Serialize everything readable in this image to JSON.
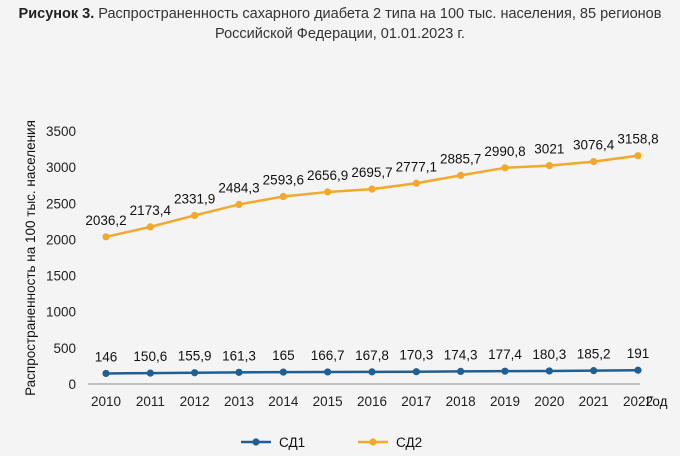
{
  "figure": {
    "label": "Рисунок 3.",
    "title_line1": "Распространенность сахарного диабета 2 типа на 100 тыс. населения, 85 регионов",
    "title_line2": "Российской Федерации, 01.01.2023 г."
  },
  "colors": {
    "sd1": "#1f5f93",
    "sd2": "#f2a92b",
    "axis": "#8a8a8a"
  },
  "chart_data": {
    "type": "line",
    "title": "Распространенность сахарного диабета 2 типа на 100 тыс. населения, 85 регионов Российской Федерации, 01.01.2023 г.",
    "xlabel": "Год",
    "ylabel": "Распространенность на 100 тыс. населения",
    "ylim": [
      0,
      3500
    ],
    "yticks": [
      0,
      500,
      1000,
      1500,
      2000,
      2500,
      3000,
      3500
    ],
    "grid": false,
    "legend_position": "bottom",
    "categories": [
      "2010",
      "2011",
      "2012",
      "2013",
      "2014",
      "2015",
      "2016",
      "2017",
      "2018",
      "2019",
      "2020",
      "2021",
      "2022"
    ],
    "series": [
      {
        "name": "СД1",
        "values": [
          146,
          150.6,
          155.9,
          161.3,
          165,
          166.7,
          167.8,
          170.3,
          174.3,
          177.4,
          180.3,
          185.2,
          191
        ],
        "labels": [
          "146",
          "150,6",
          "155,9",
          "161,3",
          "165",
          "166,7",
          "167,8",
          "170,3",
          "174,3",
          "177,4",
          "180,3",
          "185,2",
          "191"
        ]
      },
      {
        "name": "СД2",
        "values": [
          2036.2,
          2173.4,
          2331.9,
          2484.3,
          2593.6,
          2656.9,
          2695.7,
          2777.1,
          2885.7,
          2990.8,
          3021,
          3076.4,
          3158.8
        ],
        "labels": [
          "2036,2",
          "2173,4",
          "2331,9",
          "2484,3",
          "2593,6",
          "2656,9",
          "2695,7",
          "2777,1",
          "2885,7",
          "2990,8",
          "3021",
          "3076,4",
          "3158,8"
        ]
      }
    ]
  }
}
